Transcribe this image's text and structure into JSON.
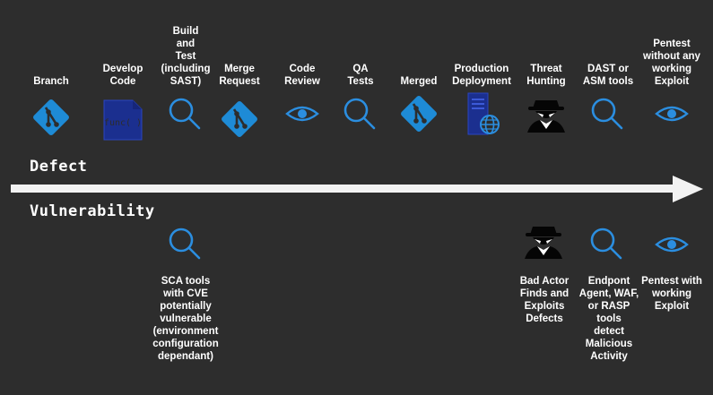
{
  "defect_label": "Defect",
  "vulnerability_label": "Vulnerability",
  "top_steps": [
    {
      "label": "Branch",
      "icon": "git-branch-icon"
    },
    {
      "label": "Develop\nCode",
      "icon": "code-file-icon",
      "icon_text": "func( )"
    },
    {
      "label": "Build\nand\nTest\n(including\nSAST)",
      "icon": "magnifier-icon"
    },
    {
      "label": "Merge\nRequest",
      "icon": "git-branch-icon"
    },
    {
      "label": "Code\nReview",
      "icon": "eye-icon"
    },
    {
      "label": "QA\nTests",
      "icon": "magnifier-icon"
    },
    {
      "label": "Merged",
      "icon": "git-branch-icon"
    },
    {
      "label": "Production\nDeployment",
      "icon": "server-globe-icon"
    },
    {
      "label": "Threat\nHunting",
      "icon": "hacker-icon"
    },
    {
      "label": "DAST or\nASM tools",
      "icon": "magnifier-icon"
    },
    {
      "label": "Pentest\nwithout any\nworking\nExploit",
      "icon": "eye-icon"
    }
  ],
  "bottom_steps": [
    {
      "label": "SCA tools\nwith CVE\npotentially\nvulnerable\n(environment\nconfiguration\ndependant)",
      "icon": "magnifier-icon"
    },
    {
      "label": "Bad Actor\nFinds and\nExploits\nDefects",
      "icon": "hacker-icon"
    },
    {
      "label": "Endpont\nAgent, WAF,\nor RASP\ntools\ndetect\nMalicious\nActivity",
      "icon": "magnifier-icon"
    },
    {
      "label": "Pentest with\nworking\nExploit",
      "icon": "eye-icon"
    }
  ],
  "colors": {
    "background": "#2d2d2d",
    "git_blue": "#1e8bd6",
    "icon_blue": "#2b8ee0",
    "dark_blue": "#1b2f8f",
    "arrow": "#f2f2f2"
  }
}
